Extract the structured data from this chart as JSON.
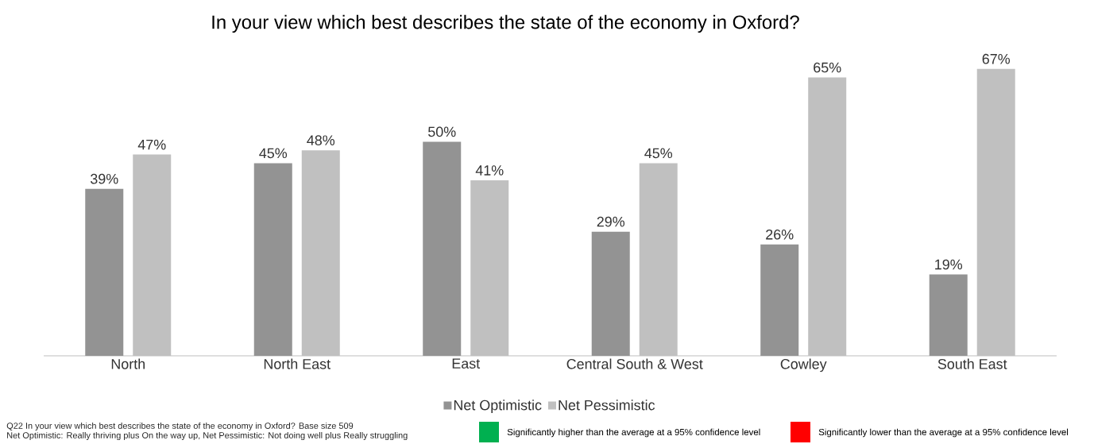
{
  "chart_data": {
    "type": "bar",
    "title": "In your view which best describes the state of the economy in Oxford?",
    "categories": [
      "North",
      "North East",
      "East",
      "Central South & West",
      "Cowley",
      "South East"
    ],
    "series": [
      {
        "name": "Net Optimistic",
        "color": "#939393",
        "values": [
          39,
          45,
          50,
          29,
          26,
          19
        ],
        "value_labels": [
          "39%",
          "45%",
          "50%",
          "29%",
          "26%",
          "19%"
        ]
      },
      {
        "name": "Net Pessimistic",
        "color": "#c0c0c0",
        "values": [
          47,
          48,
          41,
          45,
          65,
          67
        ],
        "value_labels": [
          "47%",
          "48%",
          "41%",
          "45%",
          "65%",
          "67%"
        ]
      }
    ],
    "legend": "bottom",
    "annotations": [
      "Q22 In your view which best describes the state of the economy in Oxford? Base size 509",
      "Net Optimistic: Really thriving plus On the way up, Net Pessimistic: Not doing well plus Really struggling",
      "Significantly higher than the average at a 95% confidence level",
      "Significantly lower than the average at a 95% confidence level"
    ]
  }
}
